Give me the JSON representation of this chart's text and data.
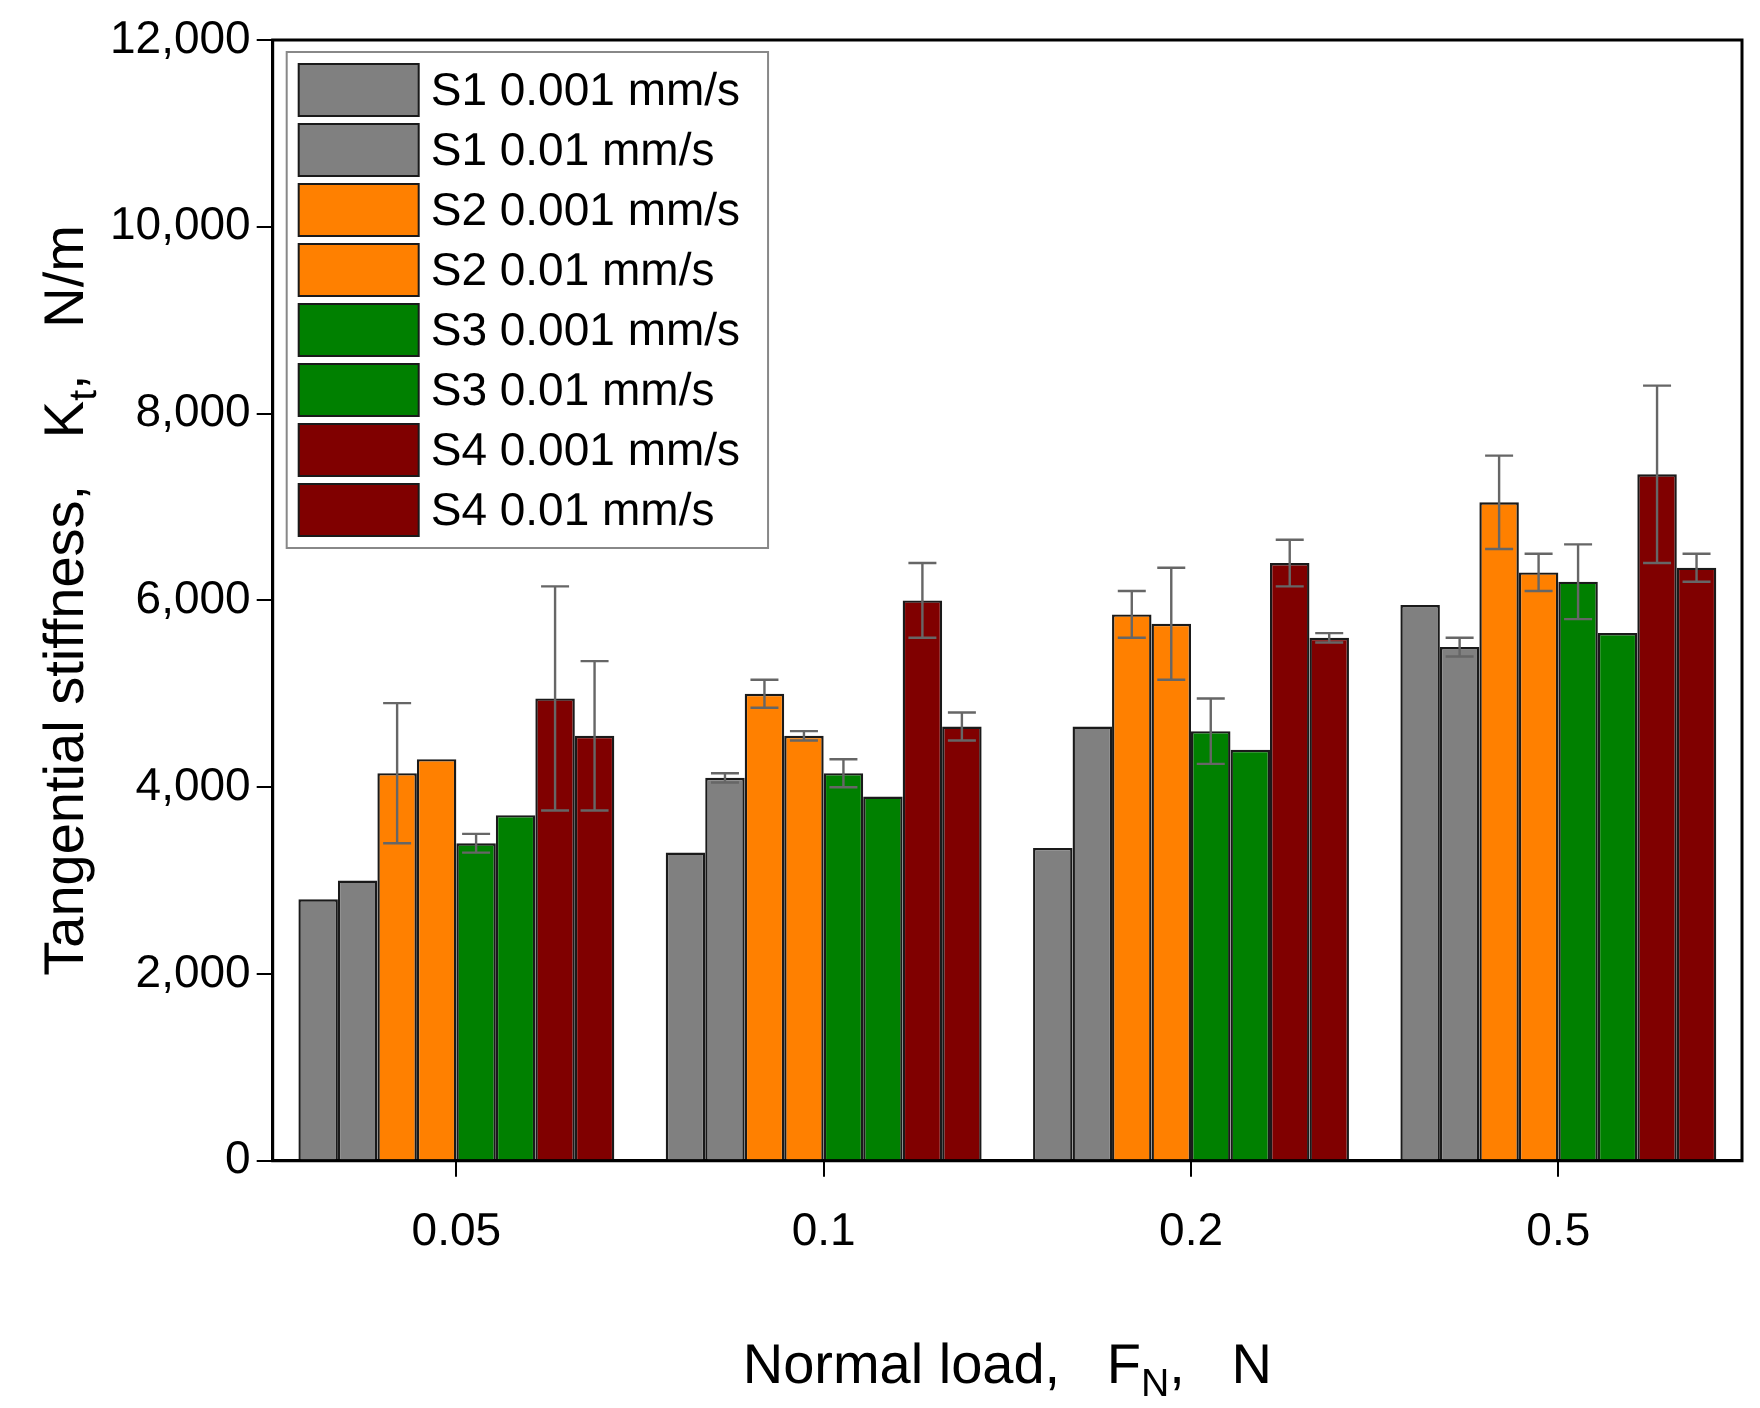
{
  "chart_data": {
    "type": "bar",
    "xlabel": "Normal load,   F$_{N}$,   N",
    "ylabel": "Tangential stiffness,   K$_{t}$,   N/m",
    "categories": [
      "0.05",
      "0.1",
      "0.2",
      "0.5"
    ],
    "series": [
      {
        "name": "S1 0.001 mm/s",
        "color": "#808080",
        "values": [
          2800,
          3300,
          3350,
          5950
        ]
      },
      {
        "name": "S1 0.01 mm/s",
        "color": "#808080",
        "values": [
          3000,
          4100,
          4650,
          5500
        ],
        "errors": [
          null,
          50,
          null,
          100
        ]
      },
      {
        "name": "S2 0.001 mm/s",
        "color": "#ff8000",
        "values": [
          4150,
          5000,
          5850,
          7050
        ],
        "errors": [
          750,
          150,
          250,
          500
        ]
      },
      {
        "name": "S2 0.01 mm/s",
        "color": "#ff8000",
        "values": [
          4300,
          4550,
          5750,
          6300
        ],
        "errors": [
          null,
          50,
          600,
          200
        ]
      },
      {
        "name": "S3 0.001 mm/s",
        "color": "#008000",
        "values": [
          3400,
          4150,
          4600,
          6200
        ],
        "errors": [
          100,
          150,
          350,
          400
        ]
      },
      {
        "name": "S3 0.01 mm/s",
        "color": "#008000",
        "values": [
          3700,
          3900,
          4400,
          5650
        ]
      },
      {
        "name": "S4 0.001 mm/s",
        "color": "#800000",
        "values": [
          4950,
          6000,
          6400,
          7350
        ],
        "errors": [
          1200,
          400,
          250,
          950
        ]
      },
      {
        "name": "S4 0.01 mm/s",
        "color": "#800000",
        "values": [
          4550,
          4650,
          5600,
          6350
        ],
        "errors": [
          800,
          150,
          50,
          150
        ]
      }
    ],
    "ylim": [
      0,
      12000
    ],
    "yticks": [
      0,
      {
        "value": 2000,
        "label": "2,000"
      },
      {
        "value": 4000,
        "label": "4,000"
      },
      {
        "value": 6000,
        "label": "6,000"
      },
      {
        "value": 8000,
        "label": "8,000"
      },
      {
        "value": 10000,
        "label": "10,000"
      },
      {
        "value": 12000,
        "label": "12,000"
      }
    ],
    "grid": false,
    "legend": "top left"
  }
}
